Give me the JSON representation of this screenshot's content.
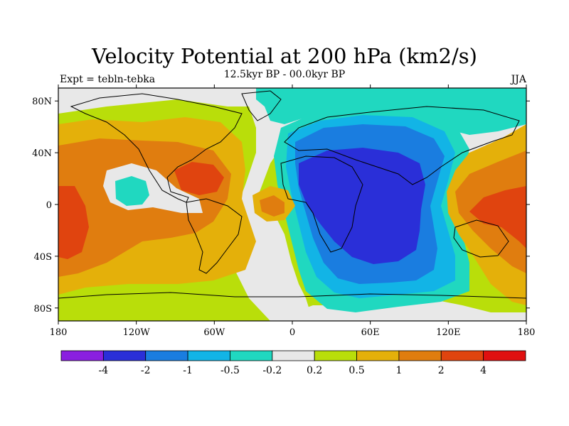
{
  "chart_data": {
    "type": "heatmap",
    "title": "Velocity Potential at 200 hPa (km2/s)",
    "subtitle": "12.5kyr BP - 00.0kyr BP",
    "left_label": "Expt = tebln-tebka",
    "right_label": "JJA",
    "x_ticks": [
      {
        "value": -180,
        "label": "180"
      },
      {
        "value": -120,
        "label": "120W"
      },
      {
        "value": -60,
        "label": "60W"
      },
      {
        "value": 0,
        "label": "0"
      },
      {
        "value": 60,
        "label": "60E"
      },
      {
        "value": 120,
        "label": "120E"
      },
      {
        "value": 180,
        "label": "180"
      }
    ],
    "y_ticks": [
      {
        "value": 80,
        "label": "80N"
      },
      {
        "value": 40,
        "label": "40N"
      },
      {
        "value": 0,
        "label": "0"
      },
      {
        "value": -40,
        "label": "40S"
      },
      {
        "value": -80,
        "label": "80S"
      }
    ],
    "xlim": [
      -180,
      180
    ],
    "ylim": [
      -90,
      90
    ],
    "levels": [
      "-4",
      "-2",
      "-1",
      "-0.5",
      "-0.2",
      "0.2",
      "0.5",
      "1",
      "2",
      "4"
    ],
    "colors": [
      "#8a1fe0",
      "#2a2fd8",
      "#1a7de0",
      "#12b4e6",
      "#20d8c0",
      "#e8e8e8",
      "#b9de0a",
      "#e4b00a",
      "#e07d0f",
      "#e0440f",
      "#e01010"
    ],
    "features": [
      {
        "name": "western-hemisphere-positive",
        "lon": -110,
        "lat": 10,
        "value": 1.5
      },
      {
        "name": "eastern-pacific-maximum",
        "lon": -180,
        "lat": 0,
        "value": 2.5
      },
      {
        "name": "caribbean-maximum",
        "lon": -75,
        "lat": 20,
        "value": 2.5
      },
      {
        "name": "east-pacific-local-minimum",
        "lon": -135,
        "lat": 12,
        "value": -0.4
      },
      {
        "name": "atlantic-local-maximum",
        "lon": -5,
        "lat": 0,
        "value": 1.5
      },
      {
        "name": "africa-indian-ocean-minimum",
        "lon": 50,
        "lat": 5,
        "value": -3
      },
      {
        "name": "maritime-continent-maximum",
        "lon": 130,
        "lat": 0,
        "value": 2.5
      }
    ]
  }
}
